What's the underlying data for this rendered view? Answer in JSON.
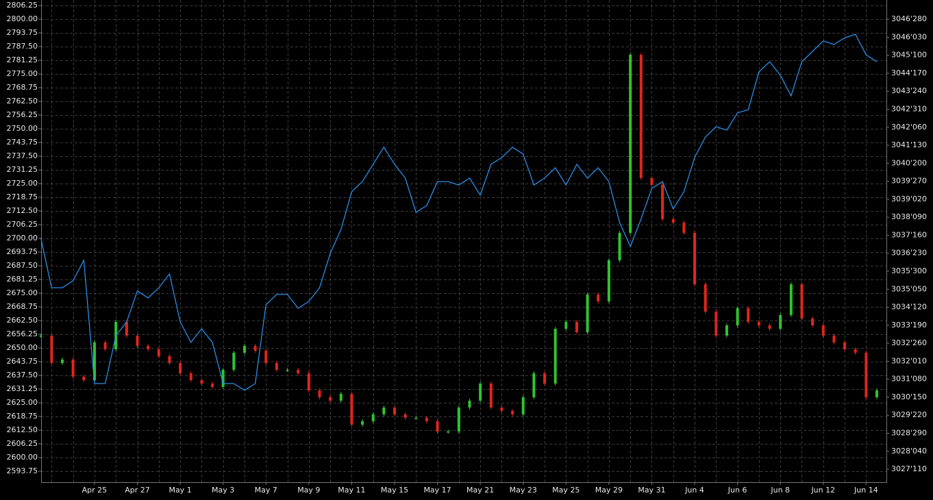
{
  "chart_data": {
    "type": "candle-line",
    "categories": [
      null,
      null,
      null,
      null,
      null,
      "Apr 25",
      null,
      null,
      null,
      "Apr 27",
      null,
      null,
      null,
      "May 1",
      null,
      null,
      null,
      "May 3",
      null,
      null,
      null,
      "May 7",
      null,
      null,
      null,
      "May 9",
      null,
      null,
      null,
      "May 11",
      null,
      null,
      null,
      "May 15",
      null,
      null,
      null,
      "May 17",
      null,
      null,
      null,
      "May 21",
      null,
      null,
      null,
      "May 23",
      null,
      null,
      null,
      "May 25",
      null,
      null,
      null,
      "May 29",
      null,
      null,
      null,
      "May 31",
      null,
      null,
      null,
      "Jun 4",
      null,
      null,
      null,
      "Jun 6",
      null,
      null,
      null,
      "Jun 8",
      null,
      null,
      null,
      "Jun 12",
      null,
      null,
      null,
      "Jun 14",
      null
    ],
    "grid": true,
    "ylim": [
      2588.75,
      2808.75
    ],
    "yticks": [
      {
        "value": 2806.25,
        "label": "2806.25"
      },
      {
        "value": 2800,
        "label": "2800.00"
      },
      {
        "value": 2793.75,
        "label": "2793.75"
      },
      {
        "value": 2787.5,
        "label": "2787.50"
      },
      {
        "value": 2781.25,
        "label": "2781.25"
      },
      {
        "value": 2775,
        "label": "2775.00"
      },
      {
        "value": 2768.75,
        "label": "2768.75"
      },
      {
        "value": 2762.5,
        "label": "2762.50"
      },
      {
        "value": 2756.25,
        "label": "2756.25"
      },
      {
        "value": 2750,
        "label": "2750.00"
      },
      {
        "value": 2743.75,
        "label": "2743.75"
      },
      {
        "value": 2737.5,
        "label": "2737.50"
      },
      {
        "value": 2731.25,
        "label": "2731.25"
      },
      {
        "value": 2725,
        "label": "2725.00"
      },
      {
        "value": 2718.75,
        "label": "2718.75"
      },
      {
        "value": 2712.5,
        "label": "2712.50"
      },
      {
        "value": 2706.25,
        "label": "2706.25"
      },
      {
        "value": 2700,
        "label": "2700.00"
      },
      {
        "value": 2693.75,
        "label": "2693.75"
      },
      {
        "value": 2687.5,
        "label": "2687.50"
      },
      {
        "value": 2681.25,
        "label": "2681.25"
      },
      {
        "value": 2675,
        "label": "2675.00"
      },
      {
        "value": 2668.75,
        "label": "2668.75"
      },
      {
        "value": 2662.5,
        "label": "2662.50"
      },
      {
        "value": 2656.25,
        "label": "2656.25"
      },
      {
        "value": 2650,
        "label": "2650.00"
      },
      {
        "value": 2643.75,
        "label": "2643.75"
      },
      {
        "value": 2637.5,
        "label": "2637.50"
      },
      {
        "value": 2631.25,
        "label": "2631.25"
      },
      {
        "value": 2625,
        "label": "2625.00"
      },
      {
        "value": 2618.75,
        "label": "2618.75"
      },
      {
        "value": 2612.5,
        "label": "2612.50"
      },
      {
        "value": 2606.25,
        "label": "2606.25"
      },
      {
        "value": 2600,
        "label": "2600.00"
      },
      {
        "value": 2593.75,
        "label": "2593.75"
      }
    ],
    "y2lim": [
      3026.78,
      3047.71
    ],
    "y2ticks": [
      {
        "value": 3046.875,
        "label": "3046'280"
      },
      {
        "value": 3046.09375,
        "label": "3046'030"
      },
      {
        "value": 3045.3125,
        "label": "3045'100"
      },
      {
        "value": 3044.53125,
        "label": "3044'170"
      },
      {
        "value": 3043.75,
        "label": "3043'240"
      },
      {
        "value": 3042.96875,
        "label": "3042'310"
      },
      {
        "value": 3042.1875,
        "label": "3042'060"
      },
      {
        "value": 3041.40625,
        "label": "3041'130"
      },
      {
        "value": 3040.625,
        "label": "3040'200"
      },
      {
        "value": 3039.84375,
        "label": "3039'270"
      },
      {
        "value": 3039.0625,
        "label": "3039'020"
      },
      {
        "value": 3038.28125,
        "label": "3038'090"
      },
      {
        "value": 3037.5,
        "label": "3037'160"
      },
      {
        "value": 3036.71875,
        "label": "3036'230"
      },
      {
        "value": 3035.9375,
        "label": "3035'300"
      },
      {
        "value": 3035.15625,
        "label": "3035'050"
      },
      {
        "value": 3034.375,
        "label": "3034'120"
      },
      {
        "value": 3033.59375,
        "label": "3033'190"
      },
      {
        "value": 3032.8125,
        "label": "3032'260"
      },
      {
        "value": 3032.03125,
        "label": "3032'010"
      },
      {
        "value": 3031.25,
        "label": "3031'080"
      },
      {
        "value": 3030.46875,
        "label": "3030'150"
      },
      {
        "value": 3029.6875,
        "label": "3029'220"
      },
      {
        "value": 3028.90625,
        "label": "3028'290"
      },
      {
        "value": 3028.125,
        "label": "3028'040"
      },
      {
        "value": 3027.34375,
        "label": "3027'110"
      }
    ],
    "series": [
      {
        "kind": "candle",
        "up_color": "#2fc42f",
        "down_color": "#e0261c",
        "values": [
          2655.63,
          2643.13,
          2644.69,
          2636.88,
          2635.31,
          2652.5,
          2649.38,
          2661.88,
          2655.63,
          2650.94,
          2649.38,
          2646.25,
          2643.13,
          2638.44,
          2635.31,
          2633.75,
          2632.19,
          2640.0,
          2647.81,
          2650.94,
          2648.75,
          2643.13,
          2640.0,
          2640.0,
          2638.44,
          2630.63,
          2627.5,
          2625.94,
          2629.06,
          2615.0,
          2616.56,
          2619.69,
          2622.81,
          2619.69,
          2618.13,
          2618.13,
          2616.56,
          2611.88,
          2611.88,
          2622.81,
          2625.94,
          2633.75,
          2622.81,
          2621.25,
          2619.69,
          2627.5,
          2638.44,
          2633.75,
          2658.75,
          2661.88,
          2657.19,
          2674.38,
          2671.25,
          2690.0,
          2702.5,
          2783.75,
          2727.5,
          2724.38,
          2708.75,
          2707.19,
          2702.5,
          2679.06,
          2666.56,
          2655.63,
          2660.31,
          2668.13,
          2661.88,
          2660.31,
          2658.75,
          2665.0,
          2679.06,
          2663.44,
          2660.31,
          2655.63,
          2652.5,
          2649.38,
          2647.81,
          2627.5,
          2630.63
        ]
      },
      {
        "kind": "line",
        "axis": "y2",
        "color": "#2b8ee8",
        "values": [
          3037.37,
          3035.22,
          3035.22,
          3035.52,
          3036.41,
          3031.06,
          3031.06,
          3033.14,
          3033.74,
          3035.08,
          3034.78,
          3035.22,
          3035.82,
          3033.74,
          3032.85,
          3033.44,
          3032.85,
          3031.06,
          3031.06,
          3030.77,
          3031.06,
          3034.48,
          3034.93,
          3034.93,
          3034.33,
          3034.63,
          3035.22,
          3036.71,
          3037.75,
          3039.39,
          3039.83,
          3040.58,
          3041.32,
          3040.58,
          3039.98,
          3038.49,
          3038.79,
          3039.83,
          3039.83,
          3039.68,
          3039.98,
          3039.24,
          3040.58,
          3040.87,
          3041.32,
          3041.02,
          3039.68,
          3039.98,
          3040.43,
          3039.68,
          3040.58,
          3039.98,
          3040.43,
          3039.83,
          3038.05,
          3037.01,
          3038.2,
          3039.53,
          3039.83,
          3038.64,
          3039.39,
          3040.87,
          3041.76,
          3042.21,
          3042.06,
          3042.81,
          3042.95,
          3044.59,
          3045.03,
          3044.44,
          3043.55,
          3045.03,
          3045.48,
          3045.93,
          3045.78,
          3046.07,
          3046.22,
          3045.33,
          3045.03
        ]
      }
    ]
  }
}
